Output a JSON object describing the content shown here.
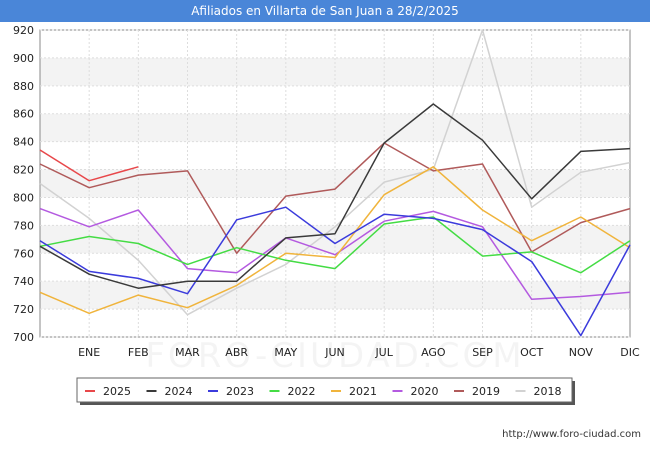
{
  "header": {
    "title": "Afiliados en Villarta de San Juan a 28/2/2025"
  },
  "footer": {
    "source": "http://www.foro-ciudad.com",
    "watermark": "FORO-CIUDAD.COM"
  },
  "chart_data": {
    "type": "line",
    "title": "Afiliados en Villarta de San Juan a 28/2/2025",
    "xlabel": "",
    "ylabel": "",
    "categories": [
      "",
      "ENE",
      "FEB",
      "MAR",
      "ABR",
      "MAY",
      "JUN",
      "JUL",
      "AGO",
      "SEP",
      "OCT",
      "NOV",
      "DIC"
    ],
    "ylim": [
      700,
      920
    ],
    "yticks": [
      700,
      720,
      740,
      760,
      780,
      800,
      820,
      840,
      860,
      880,
      900,
      920
    ],
    "grid": true,
    "legend_position": "bottom",
    "series": [
      {
        "name": "2025",
        "color": "#e8474a",
        "values": [
          834,
          812,
          822,
          null,
          null,
          null,
          null,
          null,
          null,
          null,
          null,
          null,
          null
        ]
      },
      {
        "name": "2024",
        "color": "#3a3a3a",
        "values": [
          765,
          745,
          735,
          740,
          740,
          771,
          774,
          839,
          867,
          841,
          799,
          833,
          835
        ]
      },
      {
        "name": "2023",
        "color": "#3b3bdc",
        "values": [
          769,
          747,
          742,
          731,
          784,
          793,
          767,
          788,
          785,
          777,
          754,
          701,
          766
        ]
      },
      {
        "name": "2022",
        "color": "#44dc44",
        "values": [
          765,
          772,
          767,
          752,
          764,
          755,
          749,
          781,
          786,
          758,
          761,
          746,
          769
        ]
      },
      {
        "name": "2021",
        "color": "#f0b43c",
        "values": [
          732,
          717,
          730,
          721,
          737,
          760,
          757,
          802,
          822,
          791,
          769,
          786,
          764
        ]
      },
      {
        "name": "2020",
        "color": "#b45ae0",
        "values": [
          792,
          779,
          791,
          749,
          746,
          771,
          759,
          783,
          790,
          779,
          727,
          729,
          732
        ]
      },
      {
        "name": "2019",
        "color": "#b05a5a",
        "values": [
          824,
          807,
          816,
          819,
          760,
          801,
          806,
          839,
          819,
          824,
          761,
          782,
          792
        ]
      },
      {
        "name": "2018",
        "color": "#d2d2d2",
        "values": [
          810,
          785,
          755,
          716,
          735,
          752,
          779,
          811,
          820,
          920,
          793,
          818,
          825
        ]
      }
    ]
  }
}
